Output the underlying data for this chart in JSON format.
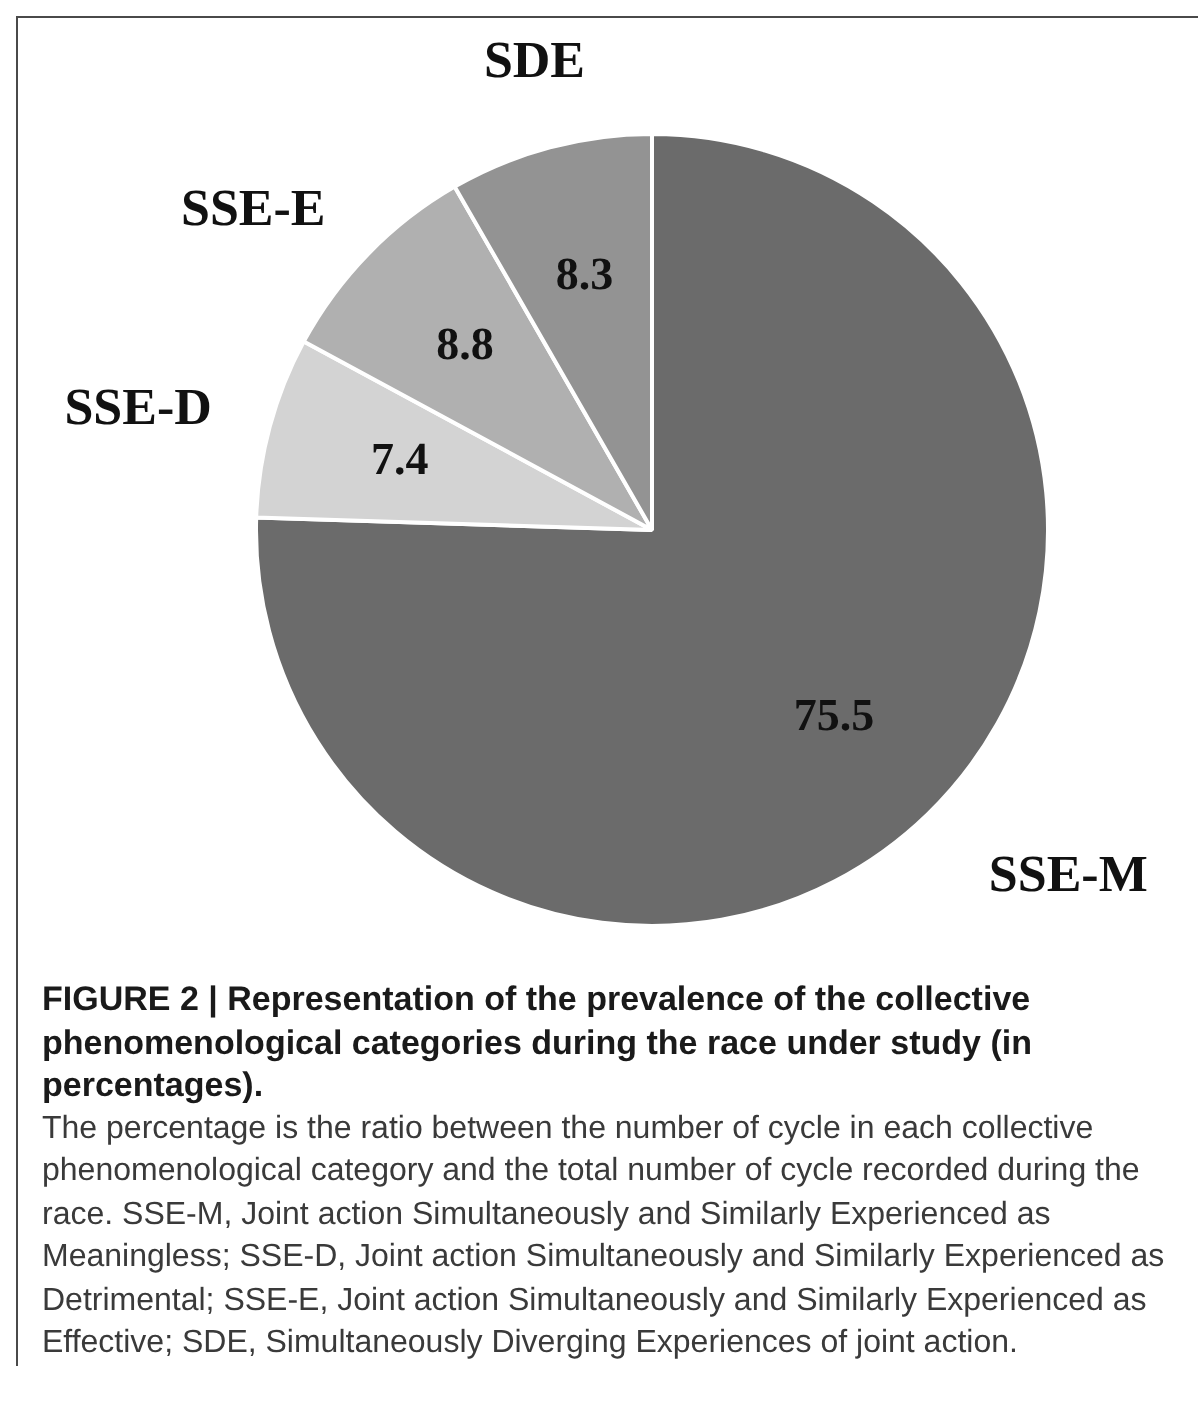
{
  "chart_data": {
    "type": "pie",
    "categories": [
      "SSE-M",
      "SSE-D",
      "SSE-E",
      "SDE"
    ],
    "values": [
      75.5,
      7.4,
      8.8,
      8.3
    ],
    "colors": [
      "#6b6b6b",
      "#d3d3d3",
      "#b0b0b0",
      "#939393"
    ],
    "data_labels": true,
    "legend": false,
    "annotations": [
      "FIGURE 2 | Representation of the prevalence of the collective phenomenological categories during the race under study (in percentages).",
      "The percentage is the ratio between the number of cycle in each collective phenomenological category and the total number of cycle recorded during the race. SSE-M, Joint action Simultaneously and Similarly Experienced as Meaningless; SSE-D, Joint action Simultaneously and Similarly Experienced as Detrimental; SSE-E, Joint action Simultaneously and Similarly Experienced as Effective; SDE, Simultaneously Diverging Experiences of joint action."
    ]
  }
}
